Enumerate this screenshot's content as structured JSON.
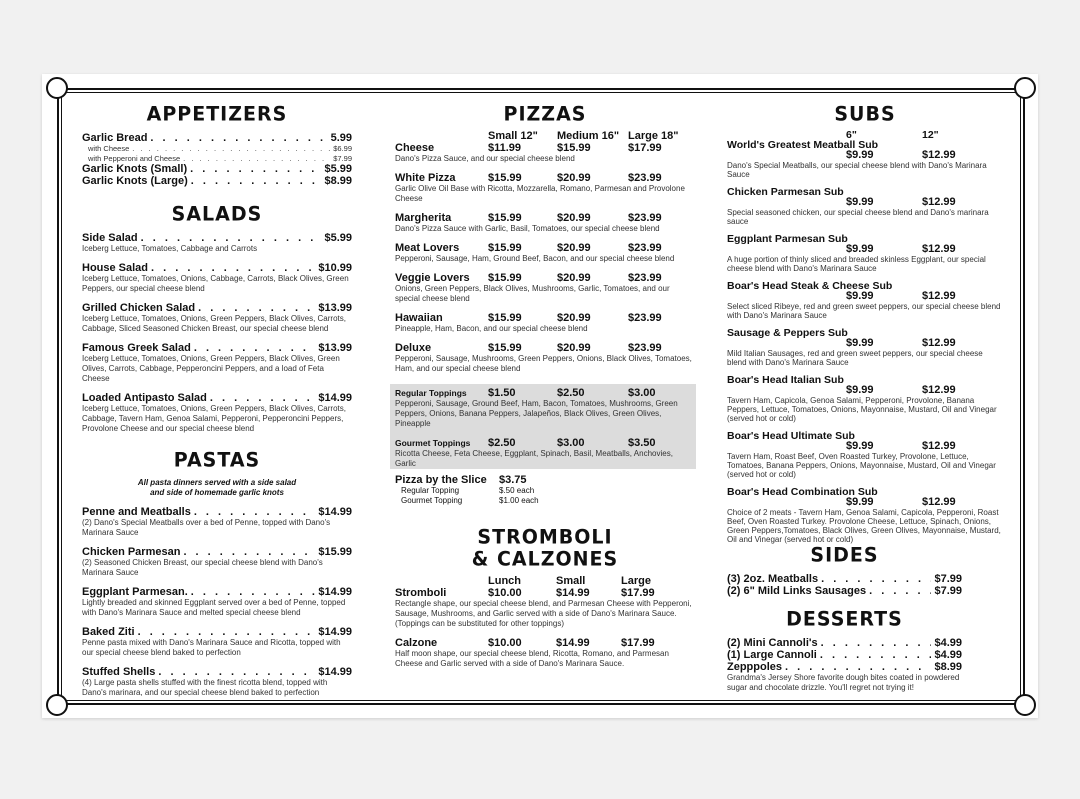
{
  "appetizers": {
    "title": "APPETIZERS",
    "items": [
      {
        "name": "Garlic Bread",
        "price": "5.99",
        "options": [
          {
            "name": "with Cheese",
            "price": "$6.99"
          },
          {
            "name": "with Pepperoni and Cheese",
            "price": "$7.99"
          }
        ]
      },
      {
        "name": "Garlic Knots (Small)",
        "price": "$5.99"
      },
      {
        "name": "Garlic Knots (Large)",
        "price": "$8.99"
      }
    ]
  },
  "salads": {
    "title": "SALADS",
    "items": [
      {
        "name": "Side Salad",
        "price": "$5.99",
        "desc": "Iceberg Lettuce, Tomatoes, Cabbage and Carrots"
      },
      {
        "name": "House Salad",
        "price": "$10.99",
        "desc": "Iceberg Lettuce, Tomatoes, Onions, Cabbage, Carrots, Black Olives, Green Peppers, our special cheese blend"
      },
      {
        "name": "Grilled Chicken Salad",
        "price": "$13.99",
        "desc": "Iceberg Lettuce, Tomatoes, Onions, Green Peppers, Black Olives, Carrots, Cabbage, Sliced Seasoned Chicken Breast, our special cheese blend"
      },
      {
        "name": "Famous Greek Salad",
        "price": "$13.99",
        "desc": "Iceberg Lettuce, Tomatoes, Onions, Green Peppers, Black Olives, Green Olives, Carrots, Cabbage, Pepperoncini Peppers, and a load of Feta Cheese"
      },
      {
        "name": "Loaded Antipasto Salad",
        "price": "$14.99",
        "desc": "Iceberg Lettuce, Tomatoes, Onions, Green Peppers, Black Olives, Carrots, Cabbage, Tavern Ham, Genoa Salami, Pepperoni, Pepperoncini Peppers, Provolone Cheese and our special cheese blend"
      }
    ]
  },
  "pastas": {
    "title": "PASTAS",
    "subtitle": [
      "All pasta dinners served with a side salad",
      "and side of homemade garlic knots"
    ],
    "items": [
      {
        "name": "Penne and Meatballs",
        "price": "$14.99",
        "desc": "(2) Dano's Special Meatballs over a bed of Penne, topped with Dano's Marinara Sauce"
      },
      {
        "name": "Chicken Parmesan",
        "price": "$15.99",
        "desc": "(2) Seasoned Chicken Breast, our special cheese blend with Dano's Marinara Sauce"
      },
      {
        "name": "Eggplant Parmesan.",
        "price": "$14.99",
        "desc": "Lightly breaded and skinned Eggplant served over a bed of Penne, topped with Dano's Marinara Sauce and melted special cheese blend"
      },
      {
        "name": "Baked Ziti",
        "price": "$14.99",
        "desc": "Penne pasta mixed with Dano's Marinara Sauce and Ricotta, topped with our special cheese blend baked to perfection"
      },
      {
        "name": "Stuffed Shells",
        "price": "$14.99",
        "desc": "(4) Large pasta shells stuffed with the finest ricotta blend, topped with Dano's marinara, and our special cheese blend baked to perfection"
      }
    ]
  },
  "pizzas": {
    "title": "PIZZAS",
    "sizes": [
      "Small 12\"",
      "Medium 16\"",
      "Large 18\""
    ],
    "items": [
      {
        "name": "Cheese",
        "prices": [
          "$11.99",
          "$15.99",
          "$17.99"
        ],
        "desc": "Dano's Pizza Sauce, and our special cheese blend"
      },
      {
        "name": "White Pizza",
        "prices": [
          "$15.99",
          "$20.99",
          "$23.99"
        ],
        "desc": "Garlic Olive Oil Base with Ricotta, Mozzarella, Romano, Parmesan and Provolone Cheese"
      },
      {
        "name": "Margherita",
        "prices": [
          "$15.99",
          "$20.99",
          "$23.99"
        ],
        "desc": "Dano's Pizza Sauce with Garlic, Basil, Tomatoes, our special cheese blend"
      },
      {
        "name": "Meat Lovers",
        "prices": [
          "$15.99",
          "$20.99",
          "$23.99"
        ],
        "desc": "Pepperoni, Sausage, Ham, Ground Beef, Bacon, and our special cheese blend"
      },
      {
        "name": "Veggie Lovers",
        "prices": [
          "$15.99",
          "$20.99",
          "$23.99"
        ],
        "desc": "Onions, Green Peppers, Black Olives, Mushrooms, Garlic, Tomatoes, and our special cheese blend"
      },
      {
        "name": "Hawaiian",
        "prices": [
          "$15.99",
          "$20.99",
          "$23.99"
        ],
        "desc": "Pineapple, Ham, Bacon, and our special cheese blend"
      },
      {
        "name": "Deluxe",
        "prices": [
          "$15.99",
          "$20.99",
          "$23.99"
        ],
        "desc": "Pepperoni, Sausage, Mushrooms, Green Peppers, Onions, Black Olives, Tomatoes, Ham, and our special cheese blend"
      }
    ],
    "toppings": [
      {
        "name": "Regular Toppings",
        "prices": [
          "$1.50",
          "$2.50",
          "$3.00"
        ],
        "desc": "Pepperoni, Sausage, Ground Beef, Ham, Bacon, Tomatoes, Mushrooms, Green Peppers, Onions, Banana Peppers, Jalapeños, Black Olives, Green Olives, Pineapple"
      },
      {
        "name": "Gourmet Toppings",
        "prices": [
          "$2.50",
          "$3.00",
          "$3.50"
        ],
        "desc": "Ricotta Cheese, Feta Cheese, Eggplant, Spinach, Basil, Meatballs, Anchovies, Garlic"
      }
    ],
    "slice": {
      "name": "Pizza by the Slice",
      "price": "$3.75",
      "options": [
        {
          "name": "Regular Topping",
          "price": "$.50 each"
        },
        {
          "name": "Gourmet Topping",
          "price": "$1.00 each"
        }
      ]
    }
  },
  "stromboli": {
    "title": [
      "STROMBOLI",
      "& CALZONES"
    ],
    "sizes": [
      "Lunch",
      "Small",
      "Large"
    ],
    "items": [
      {
        "name": "Stromboli",
        "prices": [
          "$10.00",
          "$14.99",
          "$17.99"
        ],
        "desc": "Rectangle shape, our special cheese blend, and Parmesan Cheese with Pepperoni, Sausage, Mushrooms, and Garlic served with a side of Dano's Marinara Sauce. (Toppings can be substituted for other toppings)"
      },
      {
        "name": "Calzone",
        "prices": [
          "$10.00",
          "$14.99",
          "$17.99"
        ],
        "desc": "Half moon shape, our special cheese blend, Ricotta, Romano, and Parmesan Cheese and Garlic served with a side of Dano's Marinara Sauce."
      }
    ]
  },
  "subs": {
    "title": "SUBS",
    "sizes": [
      "6\"",
      "12\""
    ],
    "items": [
      {
        "name": "World's Greatest Meatball Sub",
        "prices": [
          "$9.99",
          "$12.99"
        ],
        "desc": "Dano's Special Meatballs, our special cheese blend with Dano's Marinara Sauce"
      },
      {
        "name": "Chicken Parmesan Sub",
        "prices": [
          "$9.99",
          "$12.99"
        ],
        "desc": "Special seasoned chicken, our special cheese blend and Dano's marinara sauce"
      },
      {
        "name": "Eggplant Parmesan Sub",
        "prices": [
          "$9.99",
          "$12.99"
        ],
        "desc": "A huge portion of thinly sliced and breaded skinless Eggplant, our special cheese blend with Dano's Marinara Sauce"
      },
      {
        "name": "Boar's Head Steak & Cheese Sub",
        "prices": [
          "$9.99",
          "$12.99"
        ],
        "desc": "Select sliced Ribeye, red and green sweet peppers, our special cheese blend with Dano's Marinara Sauce"
      },
      {
        "name": "Sausage & Peppers Sub",
        "prices": [
          "$9.99",
          "$12.99"
        ],
        "desc": "Mild Italian Sausages, red and green sweet peppers, our special cheese blend with Dano's Marinara Sauce"
      },
      {
        "name": "Boar's Head Italian Sub",
        "prices": [
          "$9.99",
          "$12.99"
        ],
        "desc": "Tavern Ham, Capicola, Genoa Salami, Pepperoni, Provolone, Banana Peppers, Lettuce, Tomatoes, Onions, Mayonnaise, Mustard, Oil and Vinegar (served hot or cold)"
      },
      {
        "name": "Boar's Head Ultimate Sub",
        "prices": [
          "$9.99",
          "$12.99"
        ],
        "desc": "Tavern Ham, Roast Beef, Oven Roasted Turkey, Provolone, Lettuce, Tomatoes, Banana Peppers, Onions, Mayonnaise, Mustard, Oil and Vinegar (served hot or cold)"
      },
      {
        "name": "Boar's Head Combination Sub",
        "prices": [
          "$9.99",
          "$12.99"
        ],
        "desc": "Choice of 2 meats - Tavern Ham, Genoa Salami, Capicola, Pepperoni, Roast Beef, Oven Roasted Turkey. Provolone Cheese, Lettuce, Spinach, Onions, Green Peppers,Tomatoes, Black Olives, Green Olives, Mayonnaise, Mustard, Oil and Vinegar (served hot or cold)"
      }
    ]
  },
  "sides": {
    "title": "SIDES",
    "items": [
      {
        "name": "(3) 2oz. Meatballs",
        "price": "$7.99"
      },
      {
        "name": "(2) 6\" Mild Links Sausages",
        "price": "$7.99"
      }
    ]
  },
  "desserts": {
    "title": "DESSERTS",
    "items": [
      {
        "name": "(2) Mini Cannoli's",
        "price": "$4.99"
      },
      {
        "name": "(1) Large Cannoli",
        "price": "$4.99"
      },
      {
        "name": "Zepppoles",
        "price": "$8.99",
        "desc": "Grandma's Jersey Shore favorite dough bites coated in powdered sugar and chocolate drizzle. You'll regret not trying it!"
      }
    ]
  }
}
